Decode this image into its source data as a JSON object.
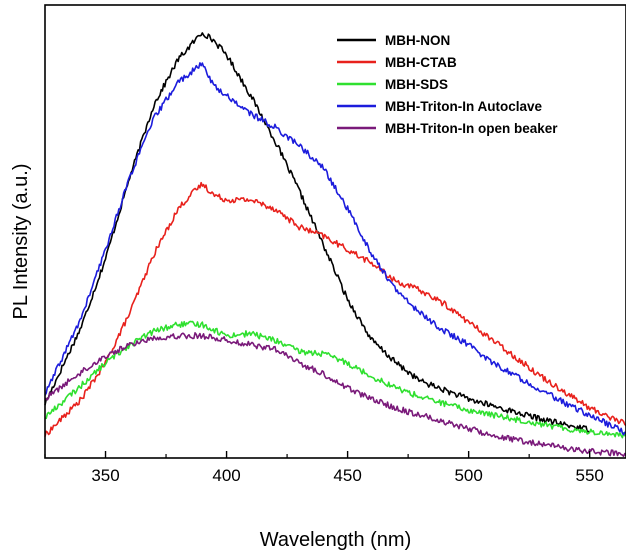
{
  "chart_data": {
    "type": "line",
    "title": "",
    "xlabel": "Wavelength (nm)",
    "ylabel": "PL Intensity (a.u.)",
    "xlim": [
      325,
      565
    ],
    "ylim": [
      0,
      100
    ],
    "x_ticks": [
      350,
      400,
      450,
      500,
      550
    ],
    "y_ticks_shown": false,
    "grid": false,
    "legend_position": "top-right",
    "series": [
      {
        "name": "MBH-NON",
        "color": "#000000",
        "x": [
          325,
          340,
          350,
          360,
          370,
          380,
          385,
          390,
          395,
          400,
          410,
          420,
          430,
          440,
          450,
          460,
          470,
          480,
          490,
          500,
          510,
          520,
          530,
          540,
          550
        ],
        "y": [
          12,
          29,
          44,
          62,
          78,
          88,
          91,
          94,
          92,
          89,
          80,
          70,
          59,
          47,
          35,
          26,
          21,
          17,
          15,
          13,
          11.5,
          10,
          8.6,
          7.3,
          6.3
        ]
      },
      {
        "name": "MBH-CTAB",
        "color": "#e8211c",
        "x": [
          325,
          340,
          350,
          360,
          370,
          380,
          385,
          390,
          395,
          400,
          410,
          420,
          430,
          440,
          450,
          460,
          470,
          480,
          490,
          500,
          510,
          520,
          530,
          540,
          550,
          565
        ],
        "y": [
          5,
          13,
          21,
          32,
          45,
          55,
          58,
          60.5,
          58,
          57,
          57,
          55,
          51,
          49,
          46,
          43,
          39,
          37,
          34,
          30,
          26,
          22,
          18,
          14.5,
          11,
          7.5
        ]
      },
      {
        "name": "MBH-SDS",
        "color": "#2fe02f",
        "x": [
          325,
          340,
          350,
          360,
          370,
          380,
          390,
          400,
          410,
          420,
          430,
          440,
          450,
          460,
          470,
          480,
          490,
          500,
          510,
          520,
          530,
          540,
          550,
          565
        ],
        "y": [
          9,
          16,
          21,
          25,
          28,
          29.5,
          29.5,
          27,
          27.5,
          26,
          23.5,
          23,
          21,
          18,
          15.5,
          13.5,
          12,
          10.5,
          9.5,
          8.5,
          7.5,
          6.5,
          5.8,
          5
        ]
      },
      {
        "name": "MBH-Triton-In Autoclave",
        "color": "#1c1cdc",
        "x": [
          325,
          340,
          350,
          360,
          370,
          380,
          385,
          390,
          395,
          400,
          410,
          420,
          430,
          440,
          450,
          460,
          470,
          480,
          490,
          500,
          510,
          520,
          530,
          540,
          550,
          565
        ],
        "y": [
          14,
          31,
          46,
          62,
          75,
          83,
          85,
          87,
          82,
          80,
          76,
          73,
          69,
          64,
          55,
          45,
          37,
          32,
          28,
          25,
          21,
          18,
          15,
          12,
          9.5,
          5.5
        ]
      },
      {
        "name": "MBH-Triton-In open beaker",
        "color": "#7a1a7a",
        "x": [
          325,
          340,
          350,
          360,
          370,
          380,
          390,
          400,
          410,
          420,
          430,
          440,
          450,
          460,
          470,
          480,
          490,
          500,
          510,
          520,
          530,
          540,
          550,
          565
        ],
        "y": [
          13,
          19,
          22.5,
          25,
          26.5,
          27,
          27,
          26,
          25,
          24,
          21,
          18.5,
          15.5,
          13,
          11,
          9.5,
          8,
          6.5,
          5,
          4,
          3,
          2.2,
          1.5,
          0.8
        ]
      }
    ]
  }
}
